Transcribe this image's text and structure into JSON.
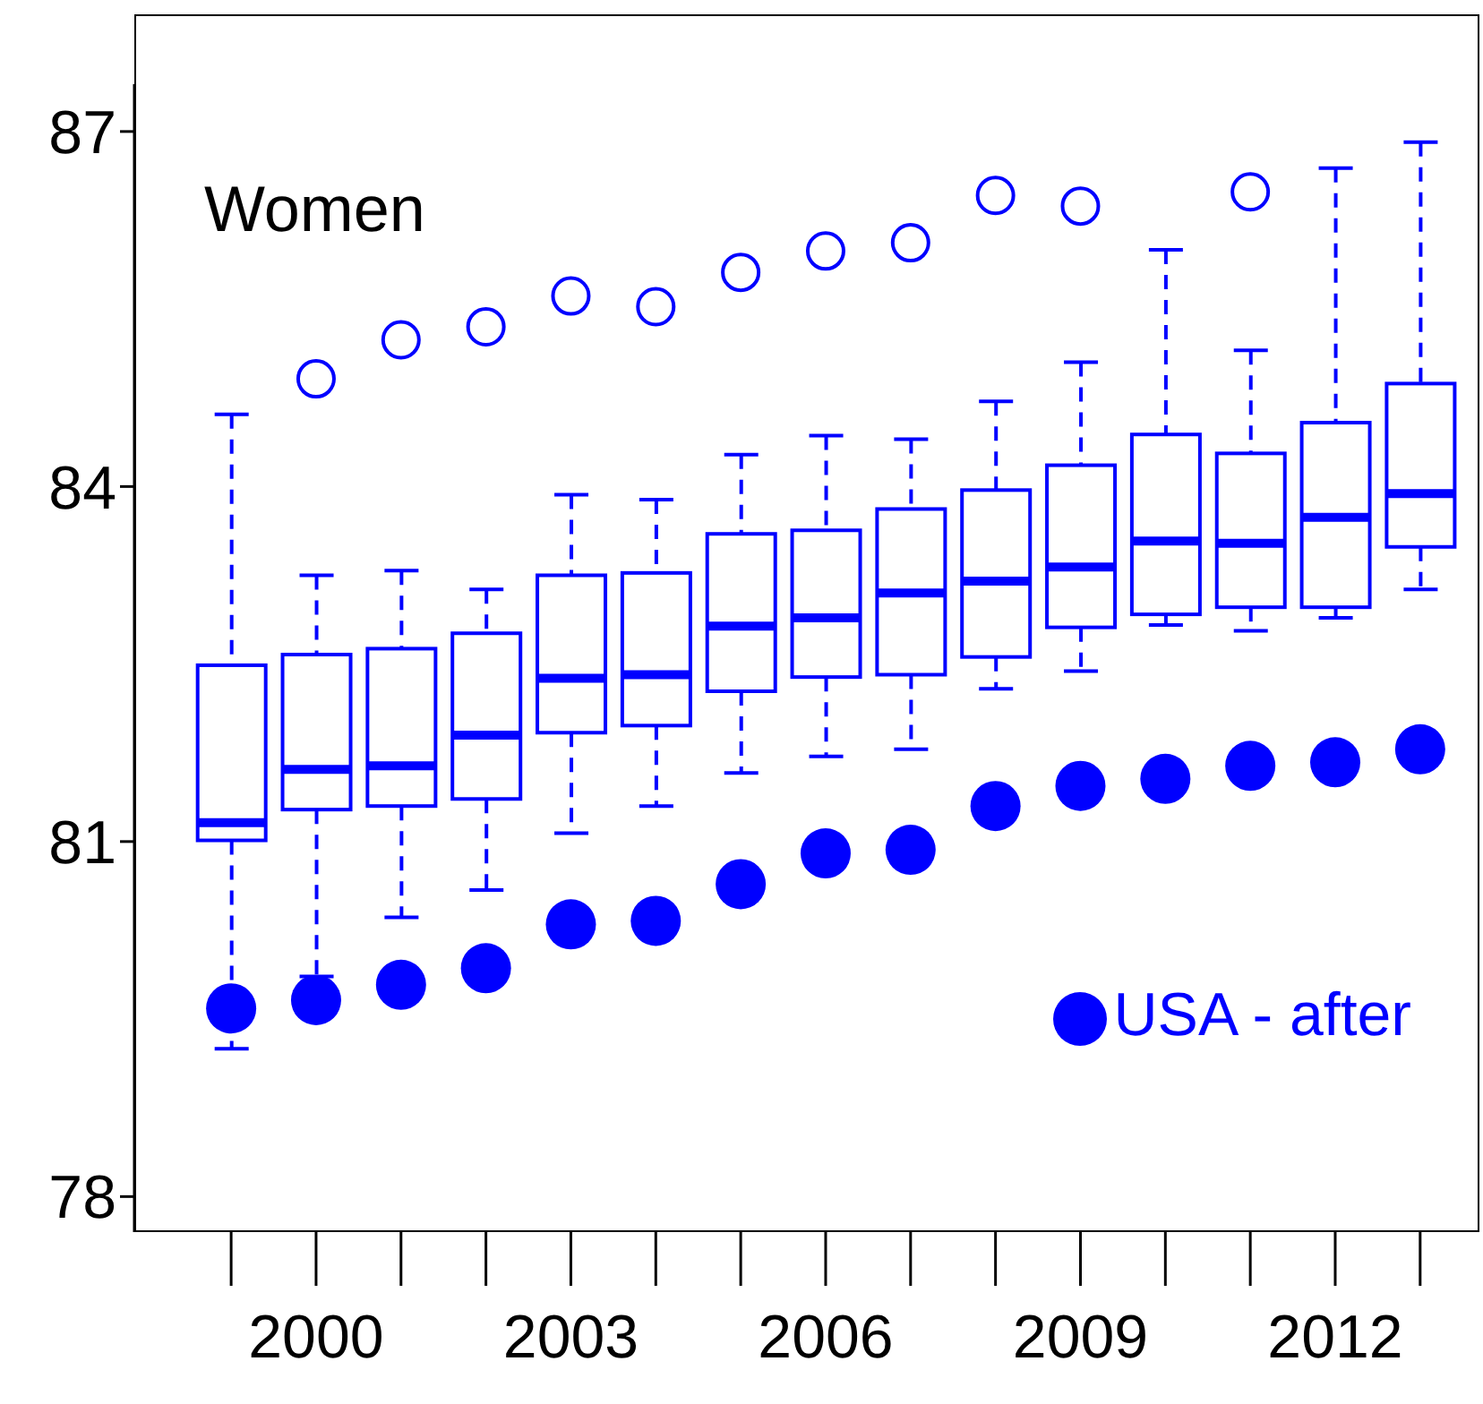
{
  "chart_data": {
    "type": "box",
    "annotations": [
      "Women"
    ],
    "categories": [
      null,
      "2000",
      null,
      null,
      "2003",
      null,
      null,
      "2006",
      null,
      null,
      "2009",
      null,
      null,
      "2012",
      null
    ],
    "ylim": [
      77.7,
      87.4
    ],
    "yticks": [
      78,
      81,
      84,
      87
    ],
    "grid": false,
    "legend": "bottom right",
    "series": [
      {
        "type": "box",
        "color": "#0000ff",
        "boxes": [
          {
            "low": 79.25,
            "q1": 81.01,
            "median": 81.16,
            "q3": 82.49,
            "high": 84.61
          },
          {
            "low": 79.86,
            "q1": 81.27,
            "median": 81.61,
            "q3": 82.58,
            "high": 83.25,
            "outliers": [
              84.91
            ]
          },
          {
            "low": 80.36,
            "q1": 81.3,
            "median": 81.64,
            "q3": 82.63,
            "high": 83.29,
            "outliers": [
              85.24
            ]
          },
          {
            "low": 80.59,
            "q1": 81.36,
            "median": 81.9,
            "q3": 82.76,
            "high": 83.13,
            "outliers": [
              85.35
            ]
          },
          {
            "low": 81.07,
            "q1": 81.92,
            "median": 82.38,
            "q3": 83.25,
            "high": 83.93,
            "outliers": [
              85.61
            ]
          },
          {
            "low": 81.3,
            "q1": 81.98,
            "median": 82.41,
            "q3": 83.27,
            "high": 83.89,
            "outliers": [
              85.52
            ]
          },
          {
            "low": 81.58,
            "q1": 82.27,
            "median": 82.82,
            "q3": 83.6,
            "high": 84.27,
            "outliers": [
              85.81
            ]
          },
          {
            "low": 81.72,
            "q1": 82.39,
            "median": 82.89,
            "q3": 83.63,
            "high": 84.43,
            "outliers": [
              85.99
            ]
          },
          {
            "low": 81.78,
            "q1": 82.41,
            "median": 83.1,
            "q3": 83.81,
            "high": 84.4,
            "outliers": [
              86.06
            ]
          },
          {
            "low": 82.29,
            "q1": 82.56,
            "median": 83.2,
            "q3": 83.97,
            "high": 84.72,
            "outliers": [
              86.46
            ]
          },
          {
            "low": 82.44,
            "q1": 82.81,
            "median": 83.32,
            "q3": 84.18,
            "high": 85.05,
            "outliers": [
              86.37
            ]
          },
          {
            "low": 82.83,
            "q1": 82.92,
            "median": 83.54,
            "q3": 84.44,
            "high": 86.0
          },
          {
            "low": 82.78,
            "q1": 82.98,
            "median": 83.52,
            "q3": 84.28,
            "high": 85.15,
            "outliers": [
              86.49
            ]
          },
          {
            "low": 82.89,
            "q1": 82.98,
            "median": 83.74,
            "q3": 84.54,
            "high": 86.69
          },
          {
            "low": 83.13,
            "q1": 83.49,
            "median": 83.94,
            "q3": 84.87,
            "high": 86.91
          }
        ]
      },
      {
        "type": "scatter",
        "name": "USA - after",
        "color": "#0000ff",
        "marker": "circle",
        "values": [
          79.59,
          79.66,
          79.79,
          79.93,
          80.3,
          80.33,
          80.64,
          80.9,
          80.93,
          81.3,
          81.47,
          81.53,
          81.64,
          81.67,
          81.78
        ]
      }
    ]
  }
}
